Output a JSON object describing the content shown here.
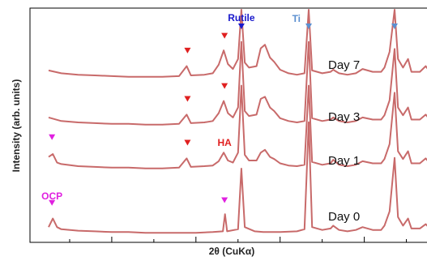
{
  "chart_data": {
    "type": "line",
    "title": "",
    "xlabel": "2θ (CuKα)",
    "ylabel": "Intensity (arb. units)",
    "x_ticks_labeled": false,
    "y_ticks_labeled": false,
    "x_range": [
      10,
      60
    ],
    "series": [
      {
        "name": "Day 7",
        "color": "#c86a6a",
        "points": [
          [
            12.5,
            0.24
          ],
          [
            14,
            0.2
          ],
          [
            16,
            0.18
          ],
          [
            18,
            0.17
          ],
          [
            20,
            0.16
          ],
          [
            22,
            0.15
          ],
          [
            24,
            0.15
          ],
          [
            26,
            0.15
          ],
          [
            28,
            0.16
          ],
          [
            28.9,
            0.3
          ],
          [
            29.4,
            0.17
          ],
          [
            31,
            0.18
          ],
          [
            32,
            0.2
          ],
          [
            32.7,
            0.32
          ],
          [
            33.3,
            0.52
          ],
          [
            33.8,
            0.33
          ],
          [
            34.4,
            0.26
          ],
          [
            35,
            0.4
          ],
          [
            35.4,
            1.35
          ],
          [
            35.8,
            0.35
          ],
          [
            36.3,
            0.28
          ],
          [
            37.2,
            0.3
          ],
          [
            37.7,
            0.55
          ],
          [
            38.2,
            0.6
          ],
          [
            38.8,
            0.42
          ],
          [
            39.3,
            0.36
          ],
          [
            40,
            0.25
          ],
          [
            41,
            0.2
          ],
          [
            42,
            0.18
          ],
          [
            42.9,
            0.2
          ],
          [
            43.4,
            1.32
          ],
          [
            43.8,
            0.24
          ],
          [
            45,
            0.2
          ],
          [
            46,
            0.22
          ],
          [
            46.3,
            0.25
          ],
          [
            47,
            0.2
          ],
          [
            48,
            0.18
          ],
          [
            49,
            0.2
          ],
          [
            49.8,
            0.26
          ],
          [
            51,
            0.22
          ],
          [
            52,
            0.22
          ],
          [
            52.4,
            0.28
          ],
          [
            53,
            0.5
          ],
          [
            53.6,
            1.22
          ],
          [
            54,
            0.4
          ],
          [
            54.6,
            0.28
          ],
          [
            55.2,
            0.4
          ],
          [
            55.6,
            0.22
          ],
          [
            56.6,
            0.22
          ],
          [
            57.3,
            0.3
          ],
          [
            57.8,
            0.22
          ],
          [
            59.5,
            0.2
          ]
        ]
      },
      {
        "name": "Day 3",
        "color": "#c86a6a",
        "points": [
          [
            12.5,
            0.24
          ],
          [
            14,
            0.19
          ],
          [
            16,
            0.17
          ],
          [
            18,
            0.16
          ],
          [
            20,
            0.15
          ],
          [
            22,
            0.15
          ],
          [
            24,
            0.14
          ],
          [
            26,
            0.14
          ],
          [
            28,
            0.15
          ],
          [
            28.9,
            0.28
          ],
          [
            29.4,
            0.16
          ],
          [
            31,
            0.17
          ],
          [
            32,
            0.19
          ],
          [
            32.7,
            0.3
          ],
          [
            33.3,
            0.47
          ],
          [
            33.8,
            0.3
          ],
          [
            34.4,
            0.24
          ],
          [
            35,
            0.38
          ],
          [
            35.4,
            1.3
          ],
          [
            35.8,
            0.33
          ],
          [
            36.3,
            0.26
          ],
          [
            37.2,
            0.28
          ],
          [
            37.7,
            0.5
          ],
          [
            38.2,
            0.53
          ],
          [
            38.8,
            0.38
          ],
          [
            39.3,
            0.33
          ],
          [
            40,
            0.23
          ],
          [
            41,
            0.19
          ],
          [
            42,
            0.17
          ],
          [
            42.9,
            0.19
          ],
          [
            43.4,
            1.3
          ],
          [
            43.8,
            0.23
          ],
          [
            45,
            0.19
          ],
          [
            46,
            0.21
          ],
          [
            46.3,
            0.24
          ],
          [
            47,
            0.19
          ],
          [
            48,
            0.17
          ],
          [
            49,
            0.19
          ],
          [
            49.8,
            0.24
          ],
          [
            51,
            0.21
          ],
          [
            52,
            0.21
          ],
          [
            52.4,
            0.27
          ],
          [
            53,
            0.48
          ],
          [
            53.6,
            1.2
          ],
          [
            54,
            0.38
          ],
          [
            54.6,
            0.27
          ],
          [
            55.2,
            0.38
          ],
          [
            55.6,
            0.21
          ],
          [
            56.6,
            0.21
          ],
          [
            57.3,
            0.28
          ],
          [
            57.8,
            0.21
          ],
          [
            59.5,
            0.19
          ]
        ]
      },
      {
        "name": "Day 1",
        "color": "#c86a6a",
        "points": [
          [
            12.5,
            0.3
          ],
          [
            13,
            0.34
          ],
          [
            13.5,
            0.22
          ],
          [
            14,
            0.2
          ],
          [
            16,
            0.17
          ],
          [
            18,
            0.16
          ],
          [
            20,
            0.15
          ],
          [
            22,
            0.15
          ],
          [
            24,
            0.14
          ],
          [
            26,
            0.14
          ],
          [
            28,
            0.15
          ],
          [
            28.9,
            0.28
          ],
          [
            29.4,
            0.16
          ],
          [
            31,
            0.17
          ],
          [
            32,
            0.18
          ],
          [
            32.7,
            0.24
          ],
          [
            33.3,
            0.36
          ],
          [
            33.8,
            0.25
          ],
          [
            34.4,
            0.22
          ],
          [
            35,
            0.36
          ],
          [
            35.4,
            1.3
          ],
          [
            35.8,
            0.33
          ],
          [
            36.3,
            0.25
          ],
          [
            37.2,
            0.25
          ],
          [
            37.7,
            0.36
          ],
          [
            38.2,
            0.4
          ],
          [
            38.8,
            0.3
          ],
          [
            39.3,
            0.27
          ],
          [
            40,
            0.21
          ],
          [
            41,
            0.18
          ],
          [
            42,
            0.17
          ],
          [
            42.9,
            0.19
          ],
          [
            43.4,
            1.3
          ],
          [
            43.8,
            0.23
          ],
          [
            45,
            0.19
          ],
          [
            46,
            0.21
          ],
          [
            46.3,
            0.26
          ],
          [
            47,
            0.19
          ],
          [
            48,
            0.17
          ],
          [
            49,
            0.19
          ],
          [
            49.8,
            0.24
          ],
          [
            51,
            0.21
          ],
          [
            52,
            0.21
          ],
          [
            52.4,
            0.27
          ],
          [
            53,
            0.48
          ],
          [
            53.6,
            1.2
          ],
          [
            54,
            0.38
          ],
          [
            54.6,
            0.27
          ],
          [
            55.2,
            0.38
          ],
          [
            55.6,
            0.21
          ],
          [
            56.6,
            0.21
          ],
          [
            57.3,
            0.28
          ],
          [
            57.8,
            0.21
          ],
          [
            59.5,
            0.19
          ]
        ]
      },
      {
        "name": "Day 0",
        "color": "#c86a6a",
        "points": [
          [
            12.5,
            0.18
          ],
          [
            13,
            0.3
          ],
          [
            13.5,
            0.18
          ],
          [
            14,
            0.15
          ],
          [
            16,
            0.13
          ],
          [
            18,
            0.12
          ],
          [
            20,
            0.11
          ],
          [
            22,
            0.11
          ],
          [
            24,
            0.1
          ],
          [
            26,
            0.1
          ],
          [
            28,
            0.1
          ],
          [
            30,
            0.1
          ],
          [
            32,
            0.11
          ],
          [
            33.2,
            0.12
          ],
          [
            33.45,
            0.36
          ],
          [
            33.7,
            0.12
          ],
          [
            35,
            0.15
          ],
          [
            35.4,
            1.0
          ],
          [
            35.8,
            0.18
          ],
          [
            37,
            0.12
          ],
          [
            38,
            0.11
          ],
          [
            40,
            0.11
          ],
          [
            42,
            0.12
          ],
          [
            42.9,
            0.15
          ],
          [
            43.4,
            1.65
          ],
          [
            43.8,
            0.18
          ],
          [
            45,
            0.14
          ],
          [
            46,
            0.16
          ],
          [
            46.3,
            0.2
          ],
          [
            47,
            0.14
          ],
          [
            48,
            0.12
          ],
          [
            49,
            0.14
          ],
          [
            49.8,
            0.18
          ],
          [
            51,
            0.14
          ],
          [
            52,
            0.14
          ],
          [
            52.4,
            0.2
          ],
          [
            53,
            0.4
          ],
          [
            53.6,
            1.15
          ],
          [
            54,
            0.32
          ],
          [
            54.6,
            0.2
          ],
          [
            55.2,
            0.3
          ],
          [
            55.6,
            0.16
          ],
          [
            56.6,
            0.16
          ],
          [
            57.3,
            0.22
          ],
          [
            57.8,
            0.16
          ],
          [
            59.5,
            0.14
          ]
        ]
      }
    ],
    "annotations": [
      {
        "text": "Rutile",
        "color": "#1a1acc",
        "x": 35.4,
        "series": "Day 7"
      },
      {
        "text": "Ti",
        "color": "#5b8fd0",
        "x": 43.4,
        "series": "Day 7"
      },
      {
        "text": "HA",
        "color": "#e02020",
        "x": 33.4,
        "series": "Day 1"
      },
      {
        "text": "OCP",
        "color": "#e020e0",
        "x": 12.9,
        "series": "Day 0"
      }
    ],
    "markers": [
      {
        "color": "#e02020",
        "x": 29.0,
        "series": "Day 7"
      },
      {
        "color": "#e02020",
        "x": 33.4,
        "series": "Day 7"
      },
      {
        "color": "#e02020",
        "x": 29.0,
        "series": "Day 3"
      },
      {
        "color": "#e02020",
        "x": 33.4,
        "series": "Day 3"
      },
      {
        "color": "#e02020",
        "x": 29.0,
        "series": "Day 1"
      },
      {
        "color": "#e020e0",
        "x": 12.9,
        "series": "Day 1"
      },
      {
        "color": "#e020e0",
        "x": 33.4,
        "series": "Day 0"
      },
      {
        "color": "#e020e0",
        "x": 12.9,
        "series": "Day 0"
      },
      {
        "color": "#1a1acc",
        "x": 35.4,
        "series": "Day 7"
      },
      {
        "color": "#5b8fd0",
        "x": 43.4,
        "series": "Day 7"
      },
      {
        "color": "#5b8fd0",
        "x": 53.6,
        "series": "Day 7"
      }
    ],
    "grid": false,
    "legend": "none"
  }
}
